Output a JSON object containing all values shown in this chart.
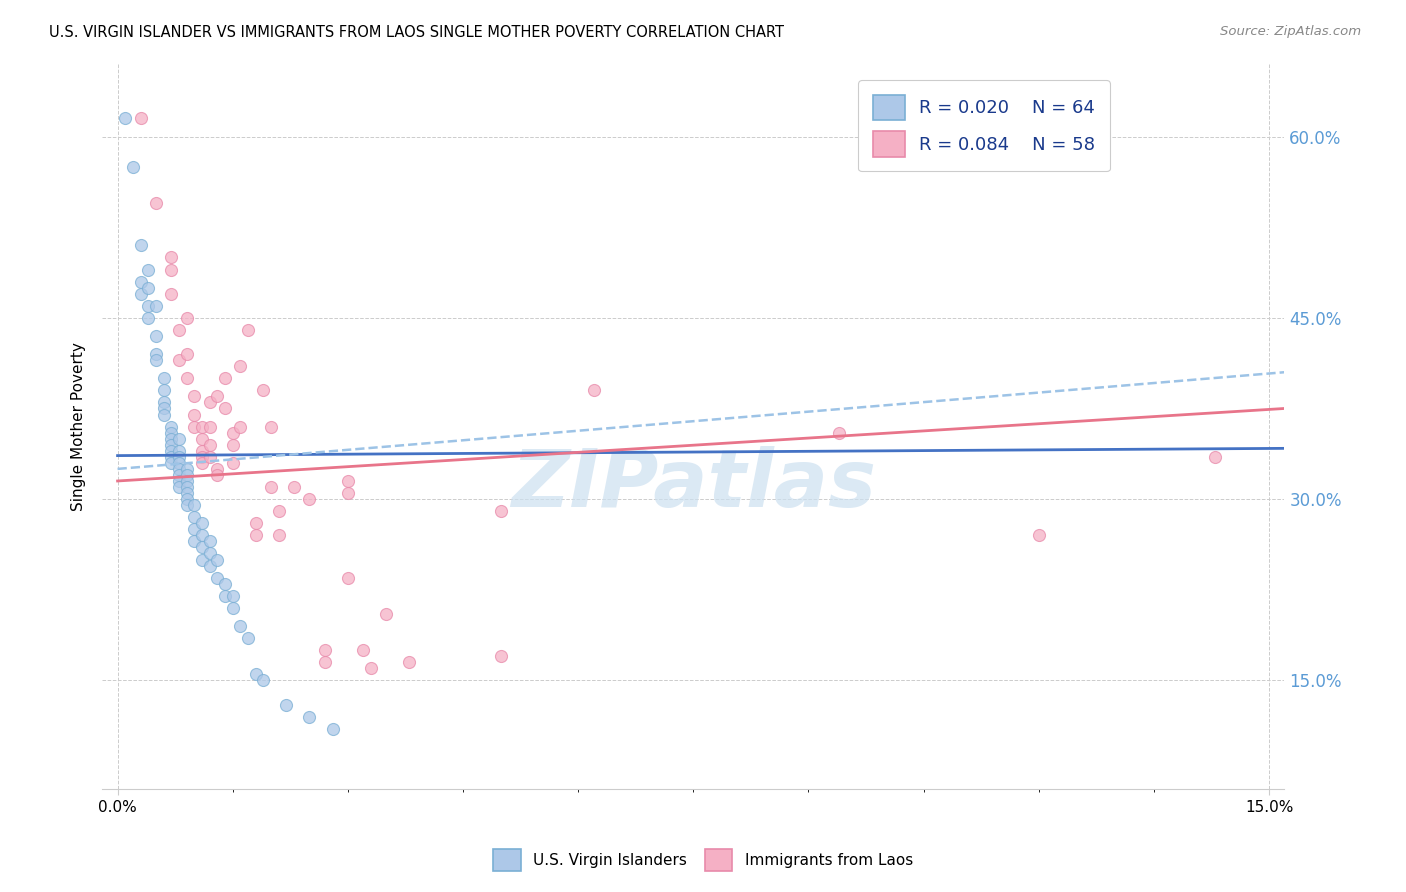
{
  "title": "U.S. VIRGIN ISLANDER VS IMMIGRANTS FROM LAOS SINGLE MOTHER POVERTY CORRELATION CHART",
  "source": "Source: ZipAtlas.com",
  "ylabel": "Single Mother Poverty",
  "yticks": [
    "15.0%",
    "30.0%",
    "45.0%",
    "60.0%"
  ],
  "ytick_vals": [
    0.15,
    0.3,
    0.45,
    0.6
  ],
  "xlim": [
    -0.002,
    0.152
  ],
  "ylim": [
    0.06,
    0.66
  ],
  "legend_r1": "R = 0.020",
  "legend_n1": "N = 64",
  "legend_r2": "R = 0.084",
  "legend_n2": "N = 58",
  "blue_color": "#adc8e8",
  "pink_color": "#f5b0c5",
  "blue_edge_color": "#7aafd4",
  "pink_edge_color": "#e88aaa",
  "blue_line_color": "#4472c4",
  "pink_line_color": "#e8748a",
  "dash_line_color": "#9dc3e6",
  "blue_scatter": [
    [
      0.001,
      0.615
    ],
    [
      0.002,
      0.575
    ],
    [
      0.003,
      0.51
    ],
    [
      0.003,
      0.48
    ],
    [
      0.003,
      0.47
    ],
    [
      0.004,
      0.49
    ],
    [
      0.004,
      0.475
    ],
    [
      0.004,
      0.46
    ],
    [
      0.004,
      0.45
    ],
    [
      0.005,
      0.46
    ],
    [
      0.005,
      0.435
    ],
    [
      0.005,
      0.42
    ],
    [
      0.005,
      0.415
    ],
    [
      0.006,
      0.4
    ],
    [
      0.006,
      0.39
    ],
    [
      0.006,
      0.38
    ],
    [
      0.006,
      0.375
    ],
    [
      0.006,
      0.37
    ],
    [
      0.007,
      0.36
    ],
    [
      0.007,
      0.355
    ],
    [
      0.007,
      0.35
    ],
    [
      0.007,
      0.345
    ],
    [
      0.007,
      0.34
    ],
    [
      0.007,
      0.335
    ],
    [
      0.007,
      0.33
    ],
    [
      0.008,
      0.35
    ],
    [
      0.008,
      0.34
    ],
    [
      0.008,
      0.335
    ],
    [
      0.008,
      0.33
    ],
    [
      0.008,
      0.325
    ],
    [
      0.008,
      0.32
    ],
    [
      0.008,
      0.315
    ],
    [
      0.008,
      0.31
    ],
    [
      0.009,
      0.325
    ],
    [
      0.009,
      0.32
    ],
    [
      0.009,
      0.315
    ],
    [
      0.009,
      0.31
    ],
    [
      0.009,
      0.305
    ],
    [
      0.009,
      0.3
    ],
    [
      0.009,
      0.295
    ],
    [
      0.01,
      0.295
    ],
    [
      0.01,
      0.285
    ],
    [
      0.01,
      0.275
    ],
    [
      0.01,
      0.265
    ],
    [
      0.011,
      0.28
    ],
    [
      0.011,
      0.27
    ],
    [
      0.011,
      0.26
    ],
    [
      0.011,
      0.25
    ],
    [
      0.012,
      0.265
    ],
    [
      0.012,
      0.255
    ],
    [
      0.012,
      0.245
    ],
    [
      0.013,
      0.25
    ],
    [
      0.013,
      0.235
    ],
    [
      0.014,
      0.23
    ],
    [
      0.014,
      0.22
    ],
    [
      0.015,
      0.22
    ],
    [
      0.015,
      0.21
    ],
    [
      0.016,
      0.195
    ],
    [
      0.017,
      0.185
    ],
    [
      0.018,
      0.155
    ],
    [
      0.019,
      0.15
    ],
    [
      0.022,
      0.13
    ],
    [
      0.025,
      0.12
    ],
    [
      0.028,
      0.11
    ]
  ],
  "pink_scatter": [
    [
      0.003,
      0.615
    ],
    [
      0.005,
      0.545
    ],
    [
      0.007,
      0.5
    ],
    [
      0.007,
      0.49
    ],
    [
      0.007,
      0.47
    ],
    [
      0.008,
      0.44
    ],
    [
      0.008,
      0.415
    ],
    [
      0.009,
      0.45
    ],
    [
      0.009,
      0.42
    ],
    [
      0.009,
      0.4
    ],
    [
      0.01,
      0.385
    ],
    [
      0.01,
      0.37
    ],
    [
      0.01,
      0.36
    ],
    [
      0.011,
      0.36
    ],
    [
      0.011,
      0.35
    ],
    [
      0.011,
      0.34
    ],
    [
      0.011,
      0.335
    ],
    [
      0.011,
      0.33
    ],
    [
      0.012,
      0.38
    ],
    [
      0.012,
      0.36
    ],
    [
      0.012,
      0.345
    ],
    [
      0.012,
      0.335
    ],
    [
      0.013,
      0.325
    ],
    [
      0.013,
      0.32
    ],
    [
      0.013,
      0.385
    ],
    [
      0.014,
      0.4
    ],
    [
      0.014,
      0.375
    ],
    [
      0.015,
      0.355
    ],
    [
      0.015,
      0.345
    ],
    [
      0.015,
      0.33
    ],
    [
      0.016,
      0.41
    ],
    [
      0.016,
      0.36
    ],
    [
      0.017,
      0.44
    ],
    [
      0.018,
      0.28
    ],
    [
      0.018,
      0.27
    ],
    [
      0.019,
      0.39
    ],
    [
      0.02,
      0.36
    ],
    [
      0.02,
      0.31
    ],
    [
      0.021,
      0.29
    ],
    [
      0.021,
      0.27
    ],
    [
      0.023,
      0.31
    ],
    [
      0.025,
      0.3
    ],
    [
      0.027,
      0.175
    ],
    [
      0.027,
      0.165
    ],
    [
      0.03,
      0.315
    ],
    [
      0.03,
      0.305
    ],
    [
      0.03,
      0.235
    ],
    [
      0.032,
      0.175
    ],
    [
      0.033,
      0.16
    ],
    [
      0.035,
      0.205
    ],
    [
      0.038,
      0.165
    ],
    [
      0.05,
      0.29
    ],
    [
      0.05,
      0.17
    ],
    [
      0.062,
      0.39
    ],
    [
      0.094,
      0.355
    ],
    [
      0.12,
      0.27
    ],
    [
      0.143,
      0.335
    ]
  ],
  "watermark": "ZIPatlas",
  "watermark_color": "#cce0f0",
  "blue_trend": [
    0.0,
    0.152,
    0.336,
    0.342
  ],
  "pink_trend": [
    0.0,
    0.152,
    0.315,
    0.375
  ],
  "dash_trend": [
    0.0,
    0.152,
    0.325,
    0.405
  ]
}
